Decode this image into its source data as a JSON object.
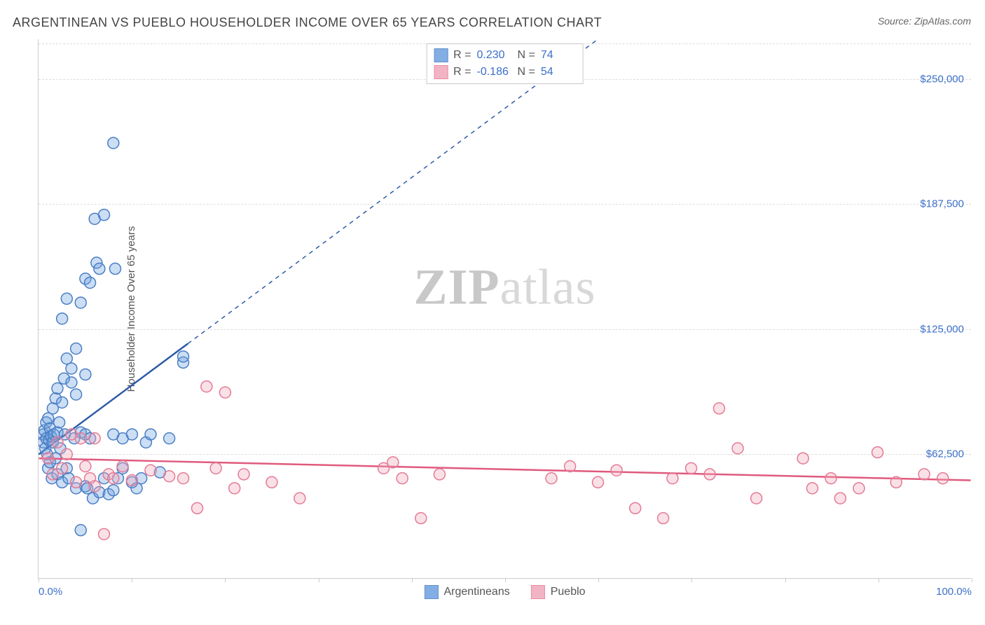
{
  "title": "ARGENTINEAN VS PUEBLO HOUSEHOLDER INCOME OVER 65 YEARS CORRELATION CHART",
  "source": "Source: ZipAtlas.com",
  "y_label": "Householder Income Over 65 years",
  "watermark_a": "ZIP",
  "watermark_b": "atlas",
  "chart": {
    "type": "scatter",
    "background_color": "#ffffff",
    "grid_color": "#dddddd",
    "axis_color": "#cccccc",
    "label_color": "#555555",
    "tick_label_color": "#3b6fc9",
    "title_color": "#444444",
    "title_fontsize": 18,
    "label_fontsize": 15,
    "xlim": [
      0,
      100
    ],
    "ylim": [
      0,
      270000
    ],
    "x_ticks": [
      0,
      10,
      20,
      30,
      40,
      50,
      60,
      70,
      80,
      90,
      100
    ],
    "x_tick_labels": {
      "0": "0.0%",
      "100": "100.0%"
    },
    "y_ticks": [
      62500,
      125000,
      187500,
      250000
    ],
    "y_tick_labels": [
      "$62,500",
      "$125,000",
      "$187,500",
      "$250,000"
    ],
    "marker_radius": 8,
    "marker_stroke_width": 1.5,
    "marker_fill_opacity": 0.35,
    "series": [
      {
        "name": "Argentineans",
        "color": "#6ea0e0",
        "stroke": "#4a7ec4",
        "r_label": "R =",
        "r_value": "0.230",
        "n_label": "N =",
        "n_value": "74",
        "trend": {
          "color": "#2d5aa8",
          "width": 2.5,
          "solid_to_x": 16,
          "x1": 0,
          "y1": 62000,
          "x2": 60,
          "y2": 270000
        },
        "points": [
          [
            0.5,
            72000
          ],
          [
            0.5,
            68000
          ],
          [
            0.6,
            74000
          ],
          [
            0.7,
            65000
          ],
          [
            0.8,
            70000
          ],
          [
            0.8,
            78000
          ],
          [
            0.9,
            62000
          ],
          [
            1.0,
            80000
          ],
          [
            1.0,
            55000
          ],
          [
            1.1,
            69000
          ],
          [
            1.2,
            58000
          ],
          [
            1.2,
            75000
          ],
          [
            1.3,
            71000
          ],
          [
            1.4,
            50000
          ],
          [
            1.5,
            68000
          ],
          [
            1.5,
            85000
          ],
          [
            1.6,
            72000
          ],
          [
            1.8,
            60000
          ],
          [
            1.8,
            90000
          ],
          [
            2.0,
            52000
          ],
          [
            2.0,
            73000
          ],
          [
            2.0,
            95000
          ],
          [
            2.2,
            78000
          ],
          [
            2.3,
            65000
          ],
          [
            2.5,
            48000
          ],
          [
            2.5,
            88000
          ],
          [
            2.5,
            130000
          ],
          [
            2.7,
            100000
          ],
          [
            2.8,
            72000
          ],
          [
            3.0,
            55000
          ],
          [
            3.0,
            110000
          ],
          [
            3.0,
            140000
          ],
          [
            3.2,
            50000
          ],
          [
            3.5,
            98000
          ],
          [
            3.5,
            105000
          ],
          [
            3.8,
            70000
          ],
          [
            4.0,
            45000
          ],
          [
            4.0,
            92000
          ],
          [
            4.0,
            115000
          ],
          [
            4.5,
            73000
          ],
          [
            4.5,
            138000
          ],
          [
            5.0,
            46000
          ],
          [
            5.0,
            72000
          ],
          [
            5.0,
            102000
          ],
          [
            5.0,
            150000
          ],
          [
            5.2,
            45000
          ],
          [
            5.5,
            70000
          ],
          [
            5.5,
            148000
          ],
          [
            5.8,
            40000
          ],
          [
            6.0,
            180000
          ],
          [
            6.2,
            158000
          ],
          [
            6.5,
            43000
          ],
          [
            6.5,
            155000
          ],
          [
            7.0,
            50000
          ],
          [
            7.0,
            182000
          ],
          [
            7.5,
            42000
          ],
          [
            4.5,
            24000
          ],
          [
            8.0,
            72000
          ],
          [
            8.0,
            44000
          ],
          [
            8.2,
            155000
          ],
          [
            8.5,
            50000
          ],
          [
            9.0,
            70000
          ],
          [
            9.0,
            55000
          ],
          [
            8.0,
            218000
          ],
          [
            10.0,
            48000
          ],
          [
            10.0,
            72000
          ],
          [
            10.5,
            45000
          ],
          [
            11.0,
            50000
          ],
          [
            11.5,
            68000
          ],
          [
            12.0,
            72000
          ],
          [
            13.0,
            53000
          ],
          [
            14.0,
            70000
          ],
          [
            15.5,
            108000
          ],
          [
            15.5,
            111000
          ]
        ]
      },
      {
        "name": "Pueblo",
        "color": "#f0a8ba",
        "stroke": "#e47a95",
        "r_label": "R =",
        "r_value": "-0.186",
        "n_label": "N =",
        "n_value": "54",
        "trend": {
          "color": "#e05a7d",
          "width": 2.5,
          "x1": 0,
          "y1": 60000,
          "x2": 100,
          "y2": 49000
        },
        "points": [
          [
            1.0,
            60000
          ],
          [
            1.5,
            52000
          ],
          [
            2.0,
            68000
          ],
          [
            2.5,
            55000
          ],
          [
            3.0,
            62000
          ],
          [
            3.5,
            72000
          ],
          [
            4.0,
            48000
          ],
          [
            4.5,
            70000
          ],
          [
            5.0,
            56000
          ],
          [
            5.5,
            50000
          ],
          [
            6.0,
            46000
          ],
          [
            6.0,
            70000
          ],
          [
            7.0,
            22000
          ],
          [
            7.5,
            52000
          ],
          [
            8.0,
            50000
          ],
          [
            9.0,
            56000
          ],
          [
            10.0,
            49000
          ],
          [
            12.0,
            54000
          ],
          [
            14.0,
            51000
          ],
          [
            15.5,
            50000
          ],
          [
            17.0,
            35000
          ],
          [
            18.0,
            96000
          ],
          [
            19.0,
            55000
          ],
          [
            20.0,
            93000
          ],
          [
            21.0,
            45000
          ],
          [
            22.0,
            52000
          ],
          [
            25.0,
            48000
          ],
          [
            28.0,
            40000
          ],
          [
            37.0,
            55000
          ],
          [
            38.0,
            58000
          ],
          [
            39.0,
            50000
          ],
          [
            41.0,
            30000
          ],
          [
            43.0,
            52000
          ],
          [
            55.0,
            50000
          ],
          [
            57.0,
            56000
          ],
          [
            60.0,
            48000
          ],
          [
            62.0,
            54000
          ],
          [
            64.0,
            35000
          ],
          [
            67.0,
            30000
          ],
          [
            68.0,
            50000
          ],
          [
            70.0,
            55000
          ],
          [
            72.0,
            52000
          ],
          [
            73.0,
            85000
          ],
          [
            75.0,
            65000
          ],
          [
            77.0,
            40000
          ],
          [
            82.0,
            60000
          ],
          [
            83.0,
            45000
          ],
          [
            85.0,
            50000
          ],
          [
            86.0,
            40000
          ],
          [
            88.0,
            45000
          ],
          [
            90.0,
            63000
          ],
          [
            92.0,
            48000
          ],
          [
            95.0,
            52000
          ],
          [
            97.0,
            50000
          ]
        ]
      }
    ]
  }
}
